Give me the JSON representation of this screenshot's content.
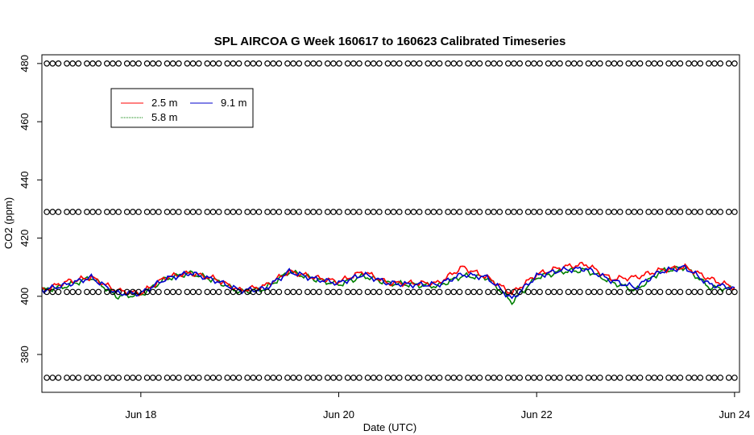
{
  "chart_data": {
    "type": "line",
    "title": "SPL AIRCOA G  Week 160617 to 160623  Calibrated Timeseries",
    "xlabel": "Date (UTC)",
    "ylabel": "CO2 (ppm)",
    "xlim": [
      17.0,
      24.05
    ],
    "ylim": [
      367,
      483
    ],
    "x_ticks": [
      {
        "value": 18,
        "label": "Jun 18"
      },
      {
        "value": 20,
        "label": "Jun 20"
      },
      {
        "value": 22,
        "label": "Jun 22"
      },
      {
        "value": 24,
        "label": "Jun 24"
      }
    ],
    "y_ticks": [
      {
        "value": 380,
        "label": "380"
      },
      {
        "value": 400,
        "label": "400"
      },
      {
        "value": 420,
        "label": "420"
      },
      {
        "value": 440,
        "label": "440"
      },
      {
        "value": 460,
        "label": "460"
      },
      {
        "value": 480,
        "label": "480"
      }
    ],
    "legend": {
      "position": "top-left",
      "entries": [
        {
          "name": "2.5 m",
          "color": "#ff0000"
        },
        {
          "name": "9.1 m",
          "color": "#0000cc"
        },
        {
          "name": "5.8 m",
          "color": "#008000"
        }
      ]
    },
    "series": [
      {
        "name": "2.5 m",
        "color": "#ff0000",
        "x": [
          17.0,
          17.25,
          17.5,
          17.75,
          18.0,
          18.25,
          18.5,
          18.75,
          19.0,
          19.25,
          19.5,
          19.75,
          20.0,
          20.25,
          20.5,
          20.75,
          21.0,
          21.25,
          21.5,
          21.75,
          22.0,
          22.25,
          22.5,
          22.75,
          23.0,
          23.25,
          23.5,
          23.75,
          24.0
        ],
        "y": [
          402,
          405,
          406.5,
          402,
          401,
          406.5,
          408,
          406,
          402,
          403.5,
          408.5,
          406.5,
          405,
          408.5,
          404.5,
          404.5,
          404.5,
          410,
          406.5,
          401,
          407.5,
          410,
          411,
          406,
          406.5,
          409,
          410,
          406,
          403
        ]
      },
      {
        "name": "5.8 m",
        "color": "#008000",
        "x": [
          17.0,
          17.25,
          17.5,
          17.75,
          18.0,
          18.25,
          18.5,
          18.75,
          19.0,
          19.25,
          19.5,
          19.75,
          20.0,
          20.25,
          20.5,
          20.75,
          21.0,
          21.25,
          21.5,
          21.75,
          22.0,
          22.25,
          22.5,
          22.75,
          23.0,
          23.25,
          23.5,
          23.75,
          24.0
        ],
        "y": [
          402,
          403.5,
          406.5,
          400,
          400.5,
          406,
          408,
          405.5,
          401.5,
          402.5,
          408.5,
          406,
          404,
          407,
          404.5,
          404,
          403.5,
          407,
          406.5,
          398,
          406.5,
          408.5,
          409,
          405,
          402,
          408.5,
          410,
          403,
          402.5
        ]
      },
      {
        "name": "9.1 m",
        "color": "#0000cc",
        "x": [
          17.0,
          17.25,
          17.5,
          17.75,
          18.0,
          18.25,
          18.5,
          18.75,
          19.0,
          19.25,
          19.5,
          19.75,
          20.0,
          20.25,
          20.5,
          20.75,
          21.0,
          21.25,
          21.5,
          21.75,
          22.0,
          22.25,
          22.5,
          22.75,
          23.0,
          23.25,
          23.5,
          23.75,
          24.0
        ],
        "y": [
          402,
          404,
          406.5,
          401,
          401,
          406,
          408,
          405.5,
          402,
          402.5,
          408.5,
          406,
          404.5,
          407.5,
          404.5,
          404,
          404,
          407.5,
          406.5,
          399,
          407,
          409,
          409.5,
          405.5,
          403,
          408.5,
          410,
          404,
          403
        ]
      },
      {
        "name": "calibration-points",
        "color": "#000000",
        "y_levels": [
          480,
          429,
          401.5,
          372
        ]
      }
    ]
  }
}
